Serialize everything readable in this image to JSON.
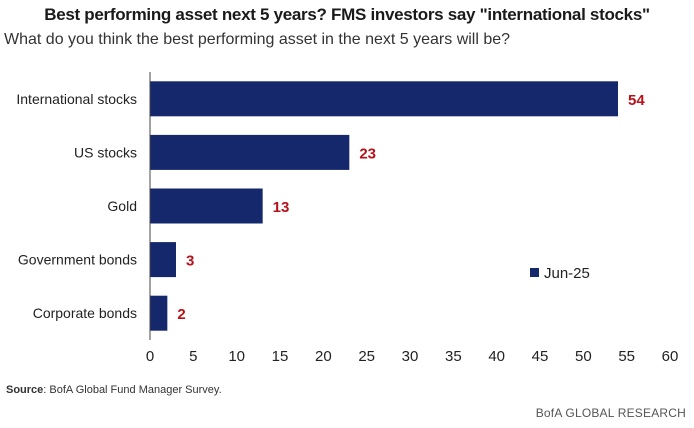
{
  "chart_data": {
    "type": "bar",
    "orientation": "horizontal",
    "title": "Best performing asset next 5 years? FMS investors say \"international stocks\"",
    "subtitle": "What do you think the best performing asset in the next 5 years will be?",
    "categories": [
      "International stocks",
      "US stocks",
      "Gold",
      "Government bonds",
      "Corporate bonds"
    ],
    "series": [
      {
        "name": "Jun-25",
        "values": [
          54,
          23,
          13,
          3,
          2
        ],
        "color": "#14286b"
      }
    ],
    "value_label_color": "#b5121b",
    "xlim": [
      0,
      60
    ],
    "xticks": [
      0,
      5,
      10,
      15,
      20,
      25,
      30,
      35,
      40,
      45,
      50,
      55,
      60
    ],
    "xlabel": "",
    "ylabel": "",
    "grid": false,
    "legend_position": "right-middle"
  },
  "footer": {
    "source_label": "Source",
    "source_text": ": BofA Global Fund Manager Survey.",
    "brand": "BofA GLOBAL RESEARCH"
  }
}
